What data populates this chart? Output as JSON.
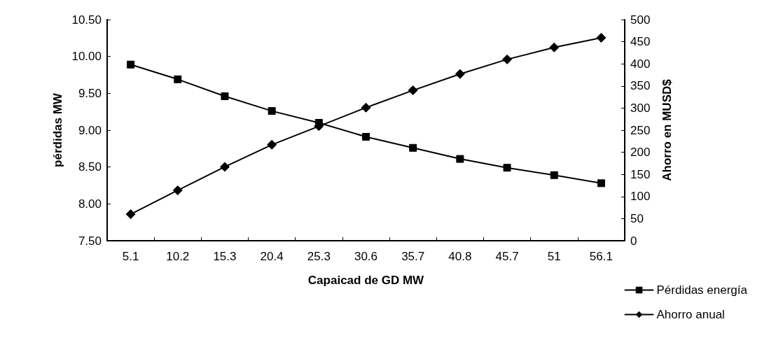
{
  "chart_data": {
    "type": "line",
    "xlabel": "Capaicad de GD MW",
    "ylabel": "pérdidas MW",
    "y2label": "Ahorro en MUSD$",
    "categories": [
      "5.1",
      "10.2",
      "15.3",
      "20.4",
      "25.3",
      "30.6",
      "35.7",
      "40.8",
      "45.7",
      "51",
      "56.1"
    ],
    "series": [
      {
        "name": "Pérdidas energía",
        "color": "#000000",
        "marker": "square",
        "values": [
          9.89,
          9.69,
          9.46,
          9.26,
          9.1,
          8.91,
          8.76,
          8.61,
          8.49,
          8.39,
          8.28
        ]
      },
      {
        "name": "Ahorro anual",
        "color": "#000000",
        "marker": "diamond",
        "axis": "y2",
        "values": [
          60,
          114,
          167,
          217,
          259,
          301,
          340,
          377,
          410,
          437,
          459
        ]
      }
    ],
    "ylim": [
      7.5,
      10.5
    ],
    "yticks": [
      {
        "value": 7.5,
        "label": "7.50"
      },
      {
        "value": 8,
        "label": "8.00"
      },
      {
        "value": 8.5,
        "label": "8.50"
      },
      {
        "value": 9,
        "label": "9.00"
      },
      {
        "value": 9.5,
        "label": "9.50"
      },
      {
        "value": 10,
        "label": "10.00"
      },
      {
        "value": 10.5,
        "label": "10.50"
      }
    ],
    "y2lim": [
      0,
      500
    ],
    "y2ticks": [
      0,
      50,
      100,
      150,
      200,
      250,
      300,
      350,
      400,
      450,
      500
    ],
    "grid": false,
    "legend": "bottom right",
    "line_style": "solid"
  }
}
